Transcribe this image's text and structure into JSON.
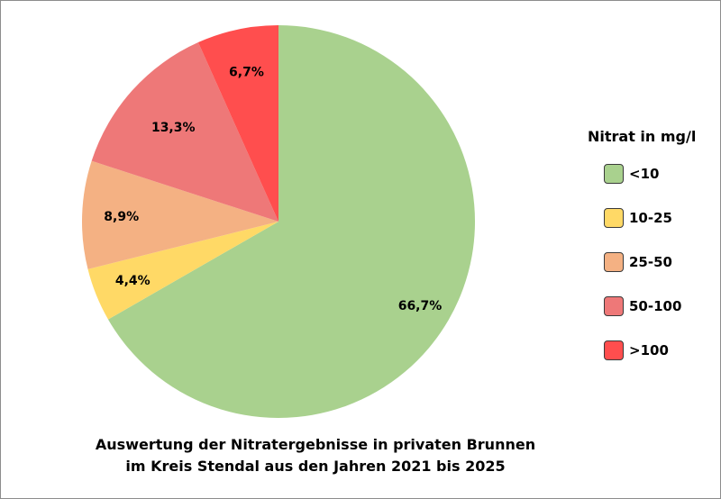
{
  "chart_data": {
    "type": "pie",
    "title": "Auswertung der Nitratergebnisse in privaten Brunnen im Kreis Stendal aus den Jahren 2021 bis 2025",
    "title_lines": [
      "Auswertung der Nitratergebnisse in privaten Brunnen",
      "im Kreis Stendal aus den Jahren 2021 bis 2025"
    ],
    "legend_title": "Nitrat in mg/l",
    "legend_position": "right",
    "categories": [
      "<10",
      "10-25",
      "25-50",
      "50-100",
      ">100"
    ],
    "values": [
      66.7,
      4.4,
      8.9,
      13.3,
      6.7
    ],
    "data_labels": [
      "66,7%",
      "4,4%",
      "8,9%",
      "13,3%",
      "6,7%"
    ],
    "colors": [
      "#A9D18E",
      "#FFD966",
      "#F4B183",
      "#EE7878",
      "#FF4E4E"
    ],
    "start_angle": "top",
    "direction": "clockwise"
  }
}
